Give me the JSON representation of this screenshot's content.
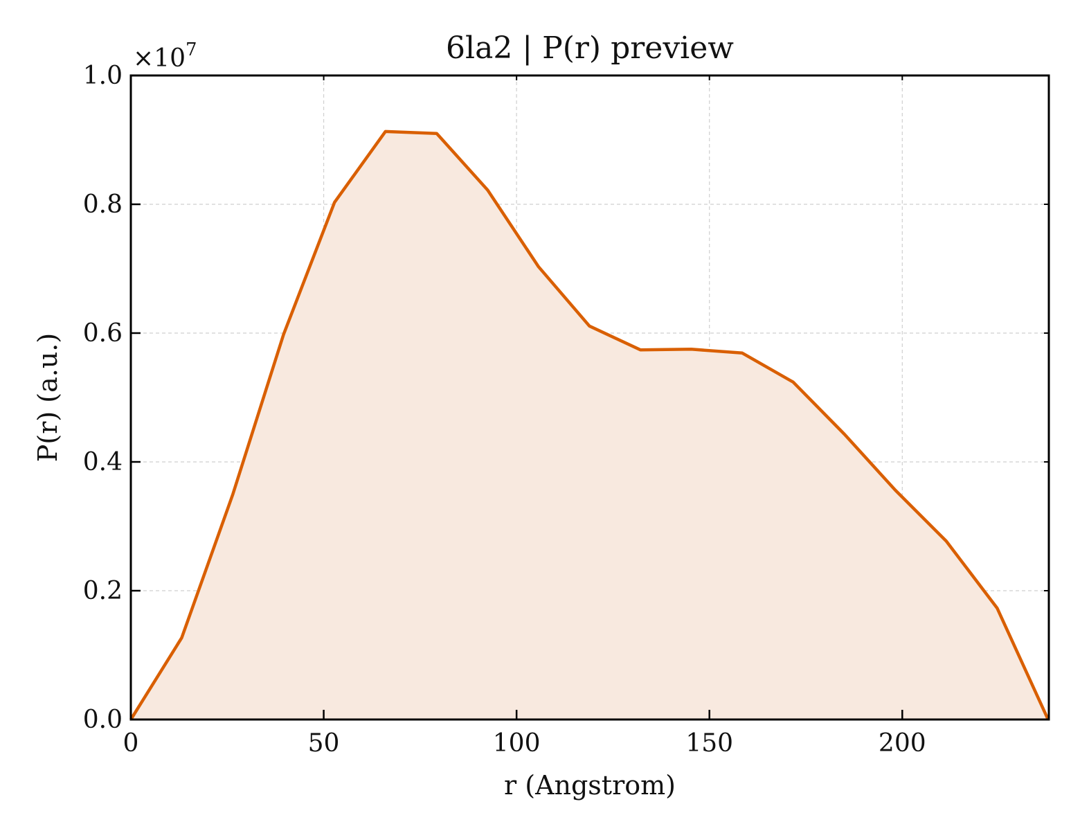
{
  "chart_data": {
    "type": "area",
    "title": "6la2 | P(r) preview",
    "xlabel": "r (Angstrom)",
    "ylabel": "P(r) (a.u.)",
    "y_multiplier_label": "×10",
    "y_multiplier_exponent": "7",
    "y_scale": 10000000,
    "xlim": [
      0,
      238
    ],
    "ylim": [
      0,
      1.0
    ],
    "x_ticks": [
      0,
      50,
      100,
      150,
      200
    ],
    "x_tick_labels": [
      "0",
      "50",
      "100",
      "150",
      "200"
    ],
    "y_ticks": [
      0.0,
      0.2,
      0.4,
      0.6,
      0.8,
      1.0
    ],
    "y_tick_labels": [
      "0.0",
      "0.2",
      "0.4",
      "0.6",
      "0.8",
      "1.0"
    ],
    "grid": true,
    "series": [
      {
        "color": "#d95f02",
        "fill_color": "#f8e9df",
        "x": [
          0,
          13.2,
          26.4,
          39.6,
          52.8,
          66.0,
          79.3,
          92.5,
          105.7,
          118.9,
          132.1,
          145.3,
          158.5,
          171.7,
          185.0,
          198.2,
          211.4,
          224.6,
          237.8
        ],
        "y": [
          0.0,
          0.127,
          0.349,
          0.598,
          0.803,
          0.913,
          0.91,
          0.822,
          0.703,
          0.611,
          0.574,
          0.575,
          0.569,
          0.524,
          0.443,
          0.356,
          0.277,
          0.173,
          0.0
        ]
      }
    ]
  }
}
